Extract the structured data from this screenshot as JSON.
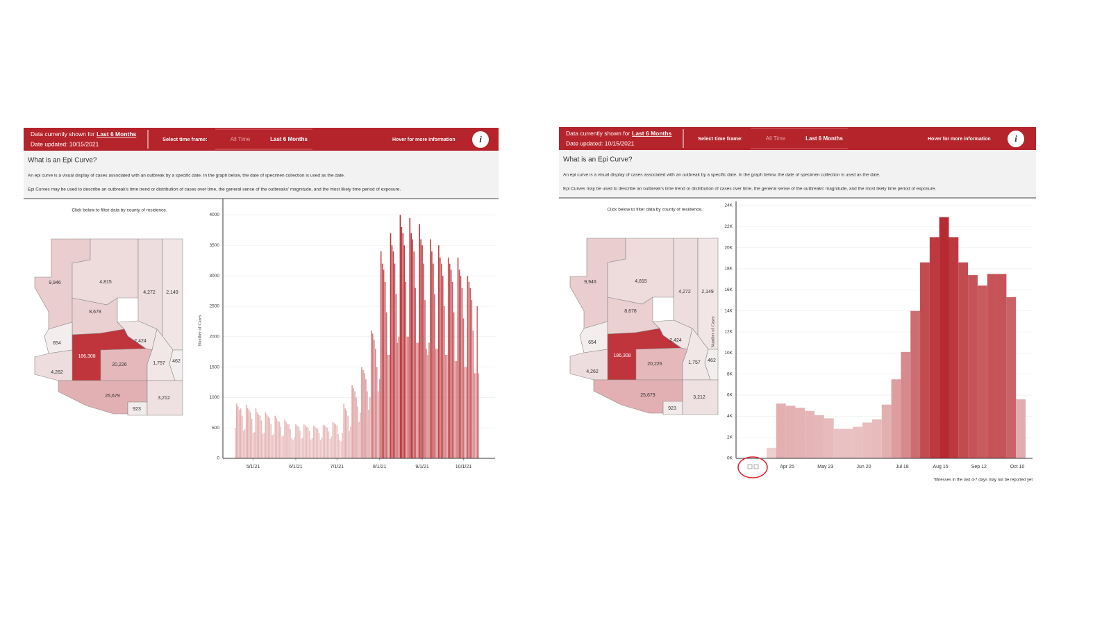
{
  "panels": [
    {
      "header": {
        "shown_prefix": "Data currently shown for",
        "shown_value": "Last 6 Months",
        "date": "Date updated: 10/15/2021",
        "select_label": "Select time frame:",
        "tabs": [
          "All Time",
          "Last 6 Months"
        ],
        "hover": "Hover for more information",
        "info": "i"
      },
      "intro": {
        "title": "What is an Epi Curve?",
        "lines": [
          "An epi curve is a visual display of cases associated with an outbreak by a specific date. In the graph below, the date of specimen collection is used as the date.",
          "Epi Curves may be used to describe an outbreak's time trend or distribution of cases over time, the general sense of the outbreaks' magnitude, and the most likely time period of exposure."
        ]
      },
      "map": {
        "caption": "Click below to filter data by county of residence.",
        "color_range": [
          "#f4f1f1",
          "#c0343b"
        ],
        "counties": [
          {
            "value": 9946,
            "label": "9,946"
          },
          {
            "value": 4815,
            "label": "4,815"
          },
          {
            "value": 4272,
            "label": "4,272"
          },
          {
            "value": 2149,
            "label": "2,149"
          },
          {
            "value": 8678,
            "label": "8,678"
          },
          {
            "value": 654,
            "label": "654"
          },
          {
            "value": 2424,
            "label": "2,424"
          },
          {
            "value": 186308,
            "label": "186,308"
          },
          {
            "value": 20226,
            "label": "20,226"
          },
          {
            "value": 1757,
            "label": "1,757"
          },
          {
            "value": 462,
            "label": "462"
          },
          {
            "value": 4262,
            "label": "4,262"
          },
          {
            "value": 25679,
            "label": "25,679"
          },
          {
            "value": 923,
            "label": "923"
          },
          {
            "value": 3212,
            "label": "3,212"
          }
        ]
      },
      "chart_data": {
        "type": "bar",
        "y_label": "Number of Cases",
        "color_range": [
          "#efd3d3",
          "#b52229"
        ],
        "grid": true,
        "xlim": [
          "4/9/21",
          "10/24/21"
        ],
        "xticks": [
          "5/1/21",
          "6/1/21",
          "7/1/21",
          "8/1/21",
          "9/1/21",
          "10/1/21"
        ],
        "ylim": [
          0,
          4200
        ],
        "yticks": [
          0,
          500,
          1000,
          1500,
          2000,
          2500,
          3000,
          3500,
          4000
        ],
        "x": [
          "4/18/21",
          "4/19/21",
          "4/20/21",
          "4/21/21",
          "4/22/21",
          "4/23/21",
          "4/24/21",
          "4/25/21",
          "4/26/21",
          "4/27/21",
          "4/28/21",
          "4/29/21",
          "4/30/21",
          "5/1/21",
          "5/2/21",
          "5/3/21",
          "5/4/21",
          "5/5/21",
          "5/6/21",
          "5/7/21",
          "5/8/21",
          "5/9/21",
          "5/10/21",
          "5/11/21",
          "5/12/21",
          "5/13/21",
          "5/14/21",
          "5/15/21",
          "5/16/21",
          "5/17/21",
          "5/18/21",
          "5/19/21",
          "5/20/21",
          "5/21/21",
          "5/22/21",
          "5/23/21",
          "5/24/21",
          "5/25/21",
          "5/26/21",
          "5/27/21",
          "5/28/21",
          "5/29/21",
          "5/30/21",
          "5/31/21",
          "6/1/21",
          "6/2/21",
          "6/3/21",
          "6/4/21",
          "6/5/21",
          "6/6/21",
          "6/7/21",
          "6/8/21",
          "6/9/21",
          "6/10/21",
          "6/11/21",
          "6/12/21",
          "6/13/21",
          "6/14/21",
          "6/15/21",
          "6/16/21",
          "6/17/21",
          "6/18/21",
          "6/19/21",
          "6/20/21",
          "6/21/21",
          "6/22/21",
          "6/23/21",
          "6/24/21",
          "6/25/21",
          "6/26/21",
          "6/27/21",
          "6/28/21",
          "6/29/21",
          "6/30/21",
          "7/1/21",
          "7/2/21",
          "7/3/21",
          "7/4/21",
          "7/5/21",
          "7/6/21",
          "7/7/21",
          "7/8/21",
          "7/9/21",
          "7/10/21",
          "7/11/21",
          "7/12/21",
          "7/13/21",
          "7/14/21",
          "7/15/21",
          "7/16/21",
          "7/17/21",
          "7/18/21",
          "7/19/21",
          "7/20/21",
          "7/21/21",
          "7/22/21",
          "7/23/21",
          "7/24/21",
          "7/25/21",
          "7/26/21",
          "7/27/21",
          "7/28/21",
          "7/29/21",
          "7/30/21",
          "7/31/21",
          "8/1/21",
          "8/2/21",
          "8/3/21",
          "8/4/21",
          "8/5/21",
          "8/6/21",
          "8/7/21",
          "8/8/21",
          "8/9/21",
          "8/10/21",
          "8/11/21",
          "8/12/21",
          "8/13/21",
          "8/14/21",
          "8/15/21",
          "8/16/21",
          "8/17/21",
          "8/18/21",
          "8/19/21",
          "8/20/21",
          "8/21/21",
          "8/22/21",
          "8/23/21",
          "8/24/21",
          "8/25/21",
          "8/26/21",
          "8/27/21",
          "8/28/21",
          "8/29/21",
          "8/30/21",
          "8/31/21",
          "9/1/21",
          "9/2/21",
          "9/3/21",
          "9/4/21",
          "9/5/21",
          "9/6/21",
          "9/7/21",
          "9/8/21",
          "9/9/21",
          "9/10/21",
          "9/11/21",
          "9/12/21",
          "9/13/21",
          "9/14/21",
          "9/15/21",
          "9/16/21",
          "9/17/21",
          "9/18/21",
          "9/19/21",
          "9/20/21",
          "9/21/21",
          "9/22/21",
          "9/23/21",
          "9/24/21",
          "9/25/21",
          "9/26/21",
          "9/27/21",
          "9/28/21",
          "9/29/21",
          "9/30/21",
          "10/1/21",
          "10/2/21",
          "10/3/21",
          "10/4/21",
          "10/5/21",
          "10/6/21",
          "10/7/21",
          "10/8/21",
          "10/9/21",
          "10/10/21",
          "10/11/21",
          "10/12/21"
        ],
        "values": [
          500,
          900,
          850,
          800,
          820,
          700,
          450,
          480,
          880,
          830,
          800,
          760,
          650,
          420,
          430,
          820,
          760,
          720,
          700,
          620,
          400,
          420,
          760,
          720,
          690,
          660,
          560,
          380,
          400,
          700,
          660,
          620,
          600,
          520,
          360,
          380,
          640,
          600,
          560,
          560,
          480,
          330,
          300,
          350,
          560,
          540,
          520,
          460,
          320,
          340,
          560,
          540,
          520,
          500,
          450,
          310,
          330,
          540,
          520,
          500,
          480,
          420,
          300,
          340,
          550,
          540,
          520,
          500,
          440,
          320,
          360,
          600,
          580,
          560,
          540,
          400,
          300,
          280,
          420,
          900,
          820,
          780,
          700,
          450,
          520,
          1200,
          1150,
          1100,
          1000,
          850,
          600,
          750,
          1500,
          1450,
          1400,
          1300,
          1100,
          800,
          1000,
          2100,
          2050,
          1950,
          1800,
          1500,
          1100,
          1300,
          3400,
          3200,
          3100,
          2900,
          2400,
          1700,
          1700,
          3700,
          3500,
          3400,
          3200,
          2700,
          1900,
          2000,
          4000,
          3800,
          3700,
          3500,
          2900,
          2000,
          2000,
          3950,
          3700,
          3600,
          3400,
          2800,
          1900,
          1900,
          3850,
          3600,
          3500,
          3200,
          2600,
          1800,
          1700,
          1900,
          3600,
          3400,
          3200,
          2700,
          1800,
          1800,
          3500,
          3300,
          3200,
          3000,
          2500,
          1700,
          1700,
          3300,
          3200,
          3100,
          2900,
          2400,
          1600,
          1600,
          3300,
          3100,
          3000,
          2800,
          2300,
          1500,
          1500,
          3000,
          2900,
          2800,
          2600,
          2100,
          1400,
          1400,
          2500,
          1400
        ]
      }
    },
    {
      "header": {
        "shown_prefix": "Data currently shown for",
        "shown_value": "Last 6 Months",
        "date": "Date updated: 10/15/2021",
        "select_label": "Select time frame:",
        "tabs": [
          "All Time",
          "Last 6 Months"
        ],
        "hover": "Hover for more information",
        "info": "i"
      },
      "intro": {
        "title": "What is an Epi Curve?",
        "lines": [
          "An epi curve is a visual display of cases associated with an outbreak by a specific date. In the graph below, the date of specimen collection is used as the date.",
          "Epi Curves may be used to describe an outbreak's time trend or distribution of cases over time, the general sense of the outbreaks' magnitude, and the most likely time period of exposure."
        ]
      },
      "map": {
        "caption": "Click below to filter data by county of residence.",
        "color_range": [
          "#f4f1f1",
          "#c0343b"
        ],
        "counties": [
          {
            "value": 9946,
            "label": "9,946"
          },
          {
            "value": 4815,
            "label": "4,815"
          },
          {
            "value": 4272,
            "label": "4,272"
          },
          {
            "value": 2149,
            "label": "2,149"
          },
          {
            "value": 8678,
            "label": "8,678"
          },
          {
            "value": 654,
            "label": "654"
          },
          {
            "value": 2424,
            "label": "2,424"
          },
          {
            "value": 186308,
            "label": "186,308"
          },
          {
            "value": 20226,
            "label": "20,226"
          },
          {
            "value": 1757,
            "label": "1,757"
          },
          {
            "value": 462,
            "label": "462"
          },
          {
            "value": 4262,
            "label": "4,262"
          },
          {
            "value": 25679,
            "label": "25,679"
          },
          {
            "value": 923,
            "label": "923"
          },
          {
            "value": 3212,
            "label": "3,212"
          }
        ]
      },
      "chart_data": {
        "type": "bar",
        "y_label": "Number of Cases",
        "color_range": [
          "#f0d6d6",
          "#b52229"
        ],
        "grid": true,
        "categories": [
          null,
          null,
          "Apr 25",
          null,
          null,
          null,
          "May 23",
          null,
          null,
          null,
          "Jun 20",
          null,
          null,
          null,
          "Jul 18",
          null,
          null,
          null,
          "Aug 15",
          null,
          null,
          null,
          "Sep 12",
          null,
          null,
          null,
          "Oct 10"
        ],
        "values": [
          1000,
          5200,
          5000,
          4800,
          4500,
          4100,
          3800,
          2800,
          2800,
          3000,
          3400,
          3700,
          5100,
          7500,
          10100,
          14000,
          18600,
          21000,
          22900,
          21000,
          18600,
          17400,
          16400,
          17500,
          17500,
          15300,
          5600
        ],
        "ylim": [
          0,
          24000
        ],
        "yticks": [
          {
            "value": 0,
            "label": "0K"
          },
          {
            "value": 2000,
            "label": "2K"
          },
          {
            "value": 4000,
            "label": "4K"
          },
          {
            "value": 6000,
            "label": "6K"
          },
          {
            "value": 8000,
            "label": "8K"
          },
          {
            "value": 10000,
            "label": "10K"
          },
          {
            "value": 12000,
            "label": "12K"
          },
          {
            "value": 14000,
            "label": "14K"
          },
          {
            "value": 16000,
            "label": "16K"
          },
          {
            "value": 18000,
            "label": "18K"
          },
          {
            "value": 20000,
            "label": "20K"
          },
          {
            "value": 22000,
            "label": "22K"
          },
          {
            "value": 24000,
            "label": "24K"
          }
        ],
        "footnote": "*Illnesses in the last 4-7 days may not be reported yet"
      }
    }
  ]
}
